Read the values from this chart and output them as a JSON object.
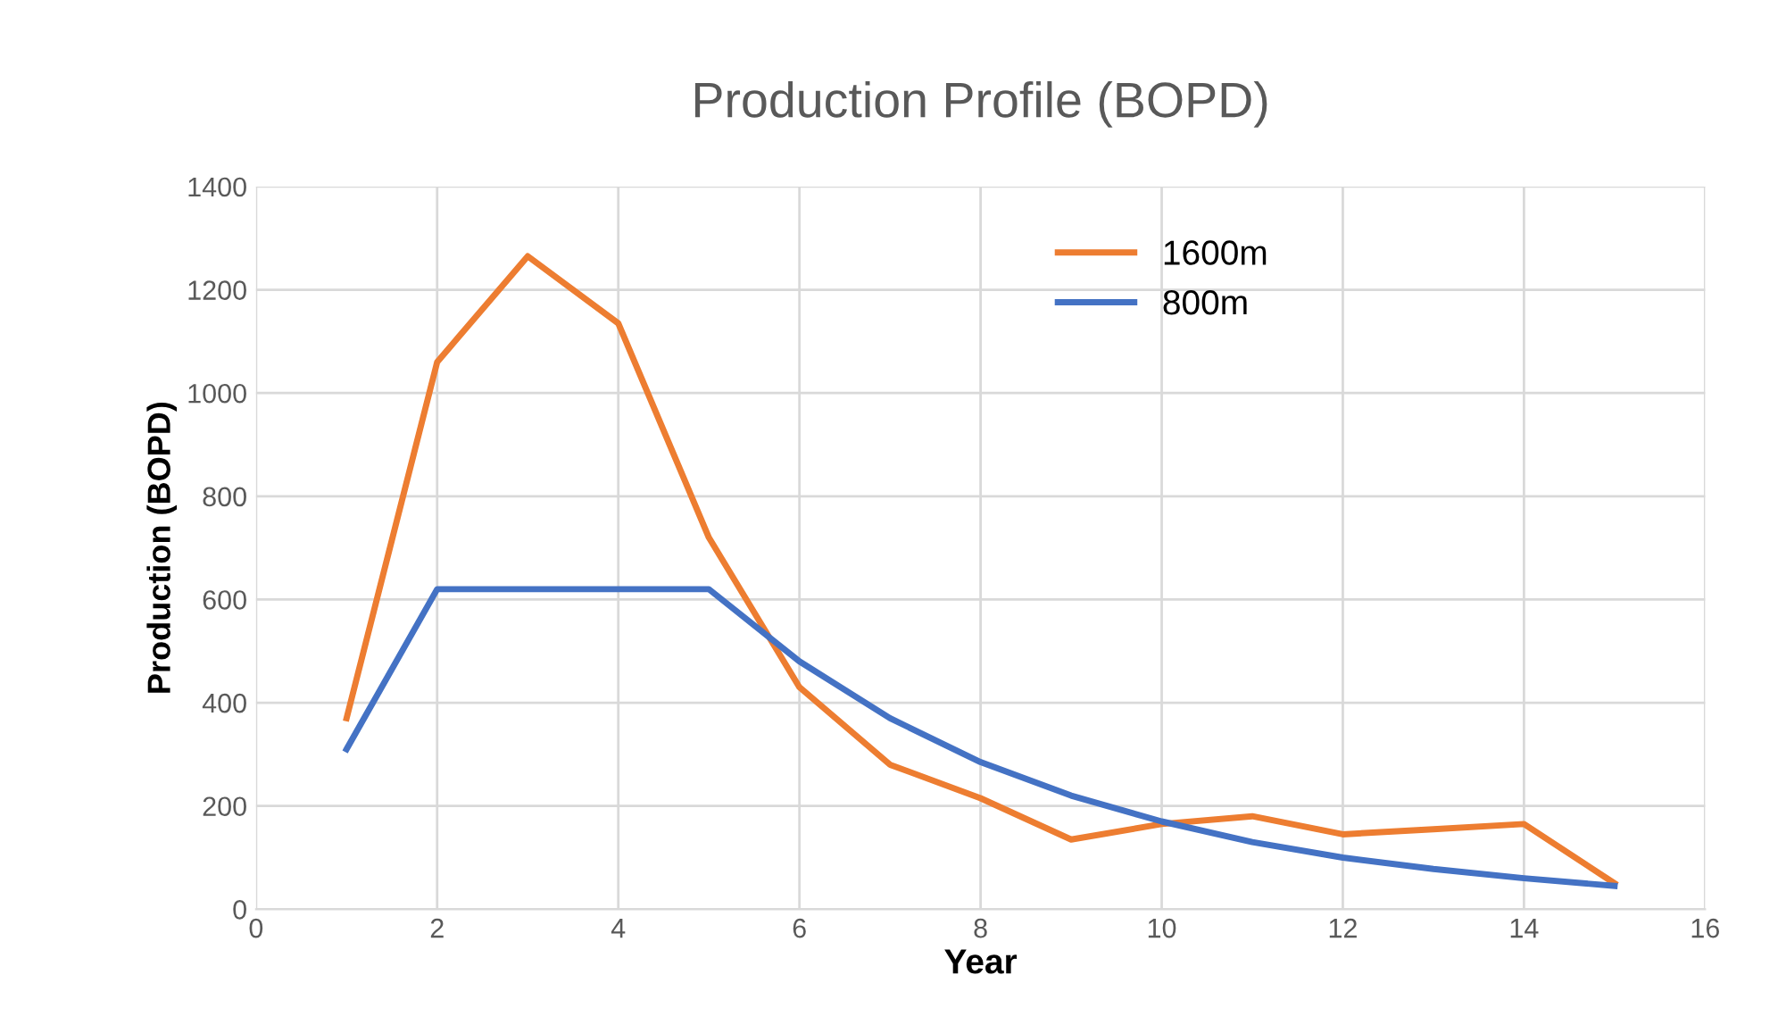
{
  "chart_data": {
    "type": "line",
    "title": "Production Profile (BOPD)",
    "xlabel": "Year",
    "ylabel": "Production (BOPD)",
    "x": [
      1,
      2,
      3,
      4,
      5,
      6,
      7,
      8,
      9,
      10,
      11,
      12,
      13,
      14,
      15
    ],
    "series": [
      {
        "name": "1600m",
        "color": "#ed7d31",
        "values": [
          370,
          1060,
          1265,
          1135,
          720,
          430,
          280,
          215,
          135,
          165,
          180,
          145,
          155,
          165,
          50
        ]
      },
      {
        "name": "800m",
        "color": "#4472c4",
        "values": [
          310,
          620,
          620,
          620,
          620,
          480,
          370,
          285,
          220,
          170,
          130,
          100,
          78,
          60,
          45
        ]
      }
    ],
    "xlim": [
      0,
      16
    ],
    "xticks": [
      0,
      2,
      4,
      6,
      8,
      10,
      12,
      14,
      16
    ],
    "ylim": [
      0,
      1400
    ],
    "yticks": [
      0,
      200,
      400,
      600,
      800,
      1000,
      1200,
      1400
    ],
    "grid": true,
    "legend": "top right"
  }
}
